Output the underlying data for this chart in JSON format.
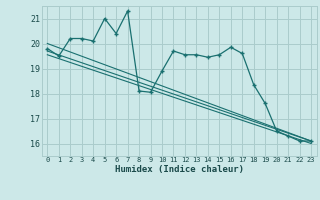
{
  "xlabel": "Humidex (Indice chaleur)",
  "bg_color": "#cce8e8",
  "grid_color": "#aacccc",
  "line_color": "#1a7070",
  "xlim": [
    -0.5,
    23.5
  ],
  "ylim": [
    15.5,
    21.5
  ],
  "xticks": [
    0,
    1,
    2,
    3,
    4,
    5,
    6,
    7,
    8,
    9,
    10,
    11,
    12,
    13,
    14,
    15,
    16,
    17,
    18,
    19,
    20,
    21,
    22,
    23
  ],
  "yticks": [
    16,
    17,
    18,
    19,
    20,
    21
  ],
  "main_x": [
    0,
    1,
    2,
    3,
    4,
    5,
    6,
    7,
    8,
    9,
    10,
    11,
    12,
    13,
    14,
    15,
    16,
    17,
    18,
    19,
    20,
    21,
    22,
    23
  ],
  "main_y": [
    19.8,
    19.5,
    20.2,
    20.2,
    20.1,
    21.0,
    20.4,
    21.3,
    18.1,
    18.05,
    18.9,
    19.7,
    19.55,
    19.55,
    19.45,
    19.55,
    19.85,
    19.6,
    18.35,
    17.6,
    16.5,
    16.3,
    16.1,
    16.1
  ],
  "line2_x": [
    0,
    23
  ],
  "line2_y": [
    20.0,
    16.1
  ],
  "line3_x": [
    0,
    23
  ],
  "line3_y": [
    19.7,
    16.1
  ],
  "line4_x": [
    0,
    23
  ],
  "line4_y": [
    19.55,
    16.0
  ]
}
